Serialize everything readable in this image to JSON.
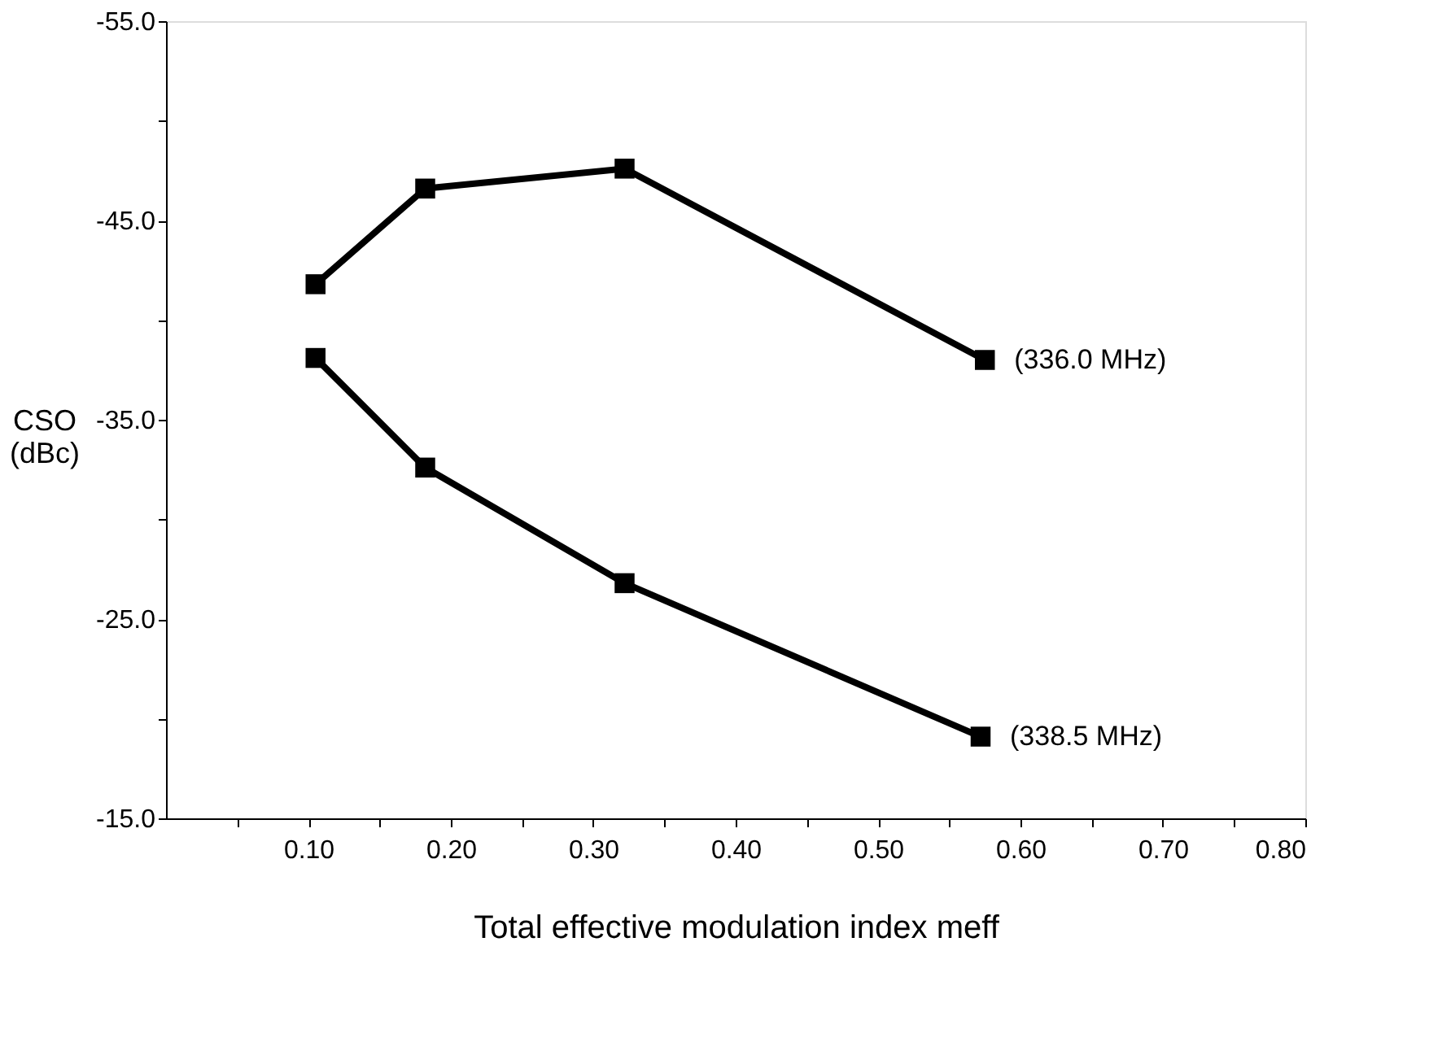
{
  "chart_data": {
    "type": "line",
    "xlabel": "Total effective modulation index meff",
    "ylabel": "CSO\n(dBc)",
    "xlim": [
      0,
      0.8
    ],
    "ylim": [
      -15,
      -55
    ],
    "xticks": [
      {
        "value": 0.05,
        "label": null
      },
      {
        "value": 0.1,
        "label": "0.10"
      },
      {
        "value": 0.15,
        "label": null
      },
      {
        "value": 0.2,
        "label": "0.20"
      },
      {
        "value": 0.25,
        "label": null
      },
      {
        "value": 0.3,
        "label": "0.30"
      },
      {
        "value": 0.35,
        "label": null
      },
      {
        "value": 0.4,
        "label": "0.40"
      },
      {
        "value": 0.45,
        "label": null
      },
      {
        "value": 0.5,
        "label": "0.50"
      },
      {
        "value": 0.55,
        "label": null
      },
      {
        "value": 0.6,
        "label": "0.60"
      },
      {
        "value": 0.65,
        "label": null
      },
      {
        "value": 0.7,
        "label": "0.70"
      },
      {
        "value": 0.75,
        "label": null
      },
      {
        "value": 0.8,
        "label": "0.80"
      }
    ],
    "yticks": [
      {
        "value": -55,
        "label": "-55.0"
      },
      {
        "value": -50,
        "label": null
      },
      {
        "value": -45,
        "label": "-45.0"
      },
      {
        "value": -40,
        "label": null
      },
      {
        "value": -35,
        "label": "-35.0"
      },
      {
        "value": -30,
        "label": null
      },
      {
        "value": -25,
        "label": "-25.0"
      },
      {
        "value": -20,
        "label": null
      },
      {
        "value": -15,
        "label": "-15.0"
      }
    ],
    "marker": "square",
    "line_style": "solid",
    "grid": false,
    "legend": false,
    "series": [
      {
        "name": "(336.0 MHz)",
        "color": "#000000",
        "x": [
          0.105,
          0.182,
          0.322,
          0.575
        ],
        "values": [
          -41.8,
          -46.6,
          -47.6,
          -38.0
        ]
      },
      {
        "name": "(338.5 MHz)",
        "color": "#000000",
        "x": [
          0.105,
          0.182,
          0.322,
          0.572
        ],
        "values": [
          -38.1,
          -32.6,
          -26.8,
          -19.1
        ]
      }
    ]
  }
}
